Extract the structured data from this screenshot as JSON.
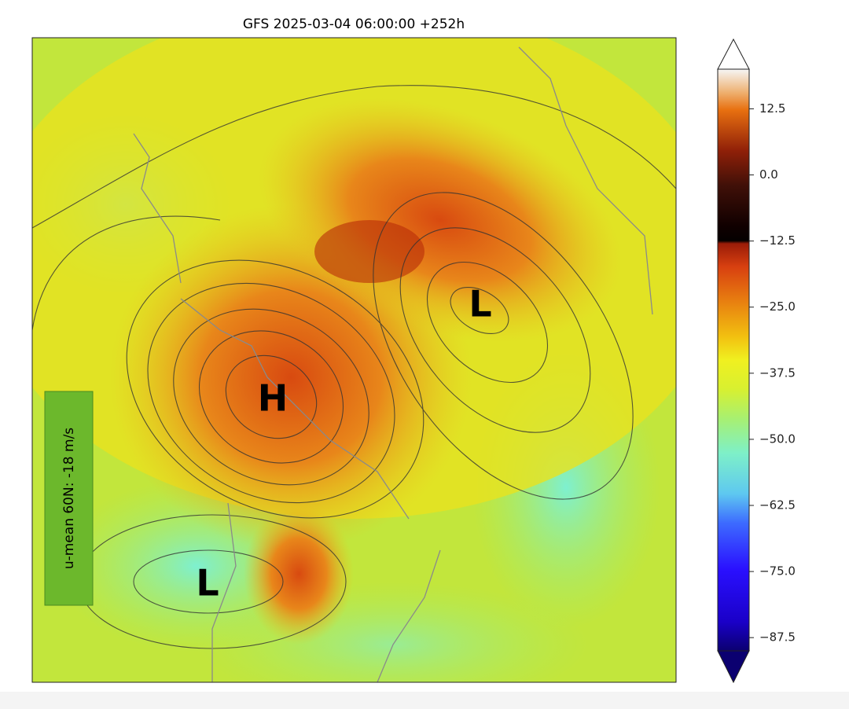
{
  "title": "GFS 2025-03-04 06:00:00 +252h",
  "annotation": "u-mean 60N: -18 m/s",
  "pressure_labels": [
    "H",
    "L",
    "L"
  ],
  "colorbar": {
    "lim": [
      -90,
      20
    ],
    "ticks": [
      {
        "value": 12.5,
        "label": "12.5"
      },
      {
        "value": 0,
        "label": "0.0"
      },
      {
        "value": -12.5,
        "label": "−12.5"
      },
      {
        "value": -25,
        "label": "−25.0"
      },
      {
        "value": -37.5,
        "label": "−37.5"
      },
      {
        "value": -50,
        "label": "−50.0"
      },
      {
        "value": -62.5,
        "label": "−62.5"
      },
      {
        "value": -75,
        "label": "−75.0"
      },
      {
        "value": -87.5,
        "label": "−87.5"
      }
    ]
  }
}
